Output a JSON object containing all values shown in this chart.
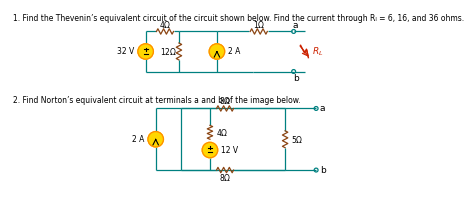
{
  "title1": "1. Find the Thevenin’s equivalent circuit of the circuit shown below. Find the current through Rₗ = 6, 16, and 36 ohms.",
  "title2": "2. Find Norton’s equivalent circuit at terminals a and b of the image below.",
  "bg_color": "#ffffff",
  "text_color": "#000000",
  "wire_color": "#008080",
  "source_fill": "#FFD700",
  "source_outline": "#FF8C00",
  "resistor_color": "#8B4513",
  "rl_color_line": "#CC2200",
  "font_size_title": 5.5,
  "font_size_label": 5.5
}
